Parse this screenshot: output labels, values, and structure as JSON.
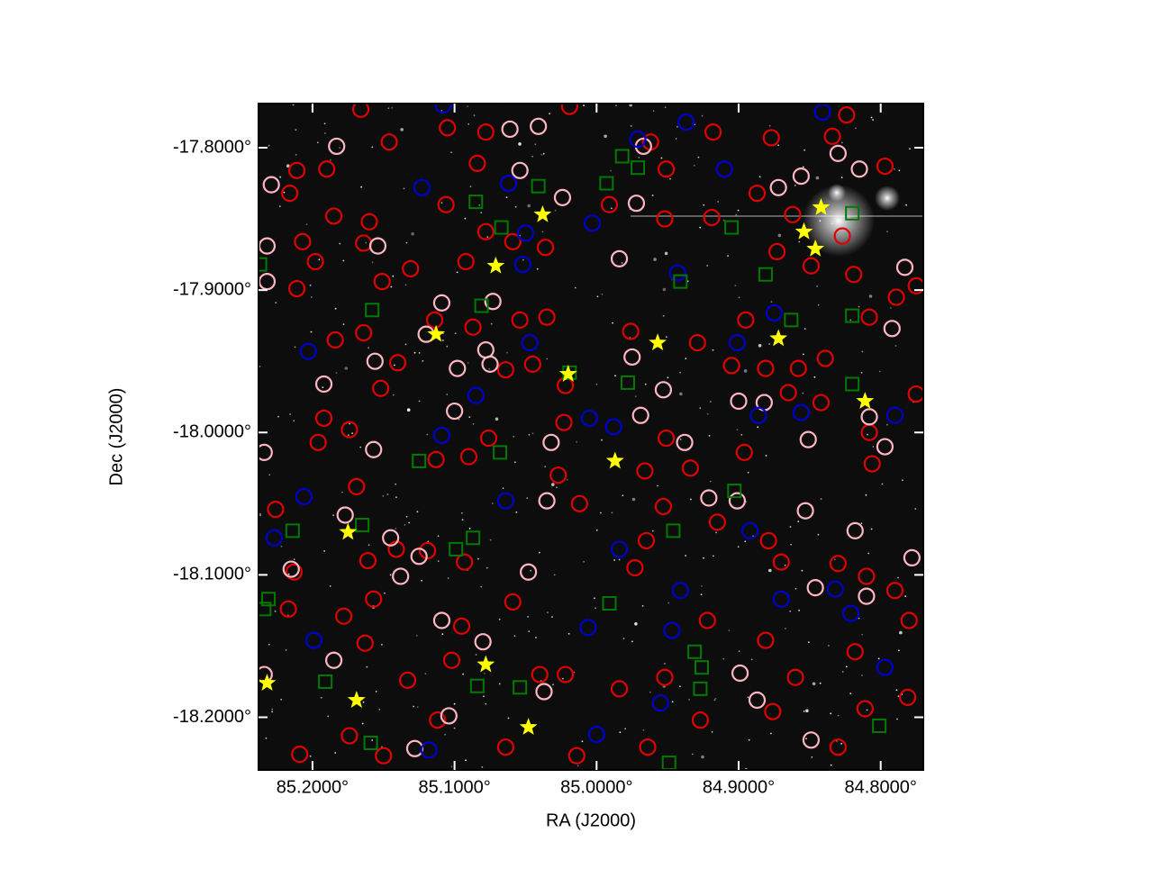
{
  "chart_data": {
    "type": "scatter",
    "xlabel": "RA (J2000)",
    "ylabel": "Dec (J2000)",
    "xlim": [
      85.238,
      84.77
    ],
    "ylim": [
      -18.237,
      -17.769
    ],
    "xticks": [
      {
        "value": 85.2,
        "label": "85.2000°"
      },
      {
        "value": 85.1,
        "label": "85.1000°"
      },
      {
        "value": 85.0,
        "label": "85.0000°"
      },
      {
        "value": 84.9,
        "label": "84.9000°"
      },
      {
        "value": 84.8,
        "label": "84.8000°"
      }
    ],
    "yticks": [
      {
        "value": -17.8,
        "label": "-17.8000°"
      },
      {
        "value": -17.9,
        "label": "-17.9000°"
      },
      {
        "value": -18.0,
        "label": "-18.0000°"
      },
      {
        "value": -18.1,
        "label": "-18.1000°"
      },
      {
        "value": -18.2,
        "label": "-18.2000°"
      }
    ],
    "background": "#0d0d0d",
    "series": [
      {
        "marker": "circle",
        "color": "#e00000",
        "x": [
          85.166,
          85.146,
          85.105,
          85.078,
          85.084,
          85.019,
          84.962,
          84.951,
          84.918,
          84.877,
          84.824,
          84.834,
          84.797,
          85.211,
          85.19,
          85.216,
          85.185,
          85.16,
          85.164,
          85.198,
          85.207,
          85.211,
          85.151,
          85.131,
          85.106,
          85.092,
          85.078,
          85.059,
          85.036,
          84.991,
          84.952,
          84.919,
          84.887,
          84.862,
          84.873,
          84.849,
          84.827,
          84.819,
          84.789,
          84.775,
          85.184,
          85.164,
          85.152,
          85.14,
          85.114,
          85.087,
          85.054,
          85.035,
          85.045,
          85.064,
          85.022,
          84.976,
          84.929,
          84.905,
          84.895,
          84.881,
          84.858,
          84.839,
          84.808,
          84.775,
          85.192,
          85.196,
          85.174,
          85.113,
          85.09,
          85.076,
          85.023,
          85.027,
          84.966,
          84.951,
          84.934,
          84.896,
          84.865,
          84.842,
          84.808,
          84.806,
          85.226,
          85.169,
          85.161,
          85.141,
          85.157,
          85.119,
          85.093,
          85.059,
          85.012,
          84.973,
          84.965,
          84.953,
          84.915,
          84.879,
          84.87,
          84.83,
          84.81,
          84.79,
          85.213,
          85.217,
          85.178,
          85.163,
          85.133,
          85.102,
          85.095,
          85.04,
          85.022,
          84.984,
          84.952,
          84.922,
          84.881,
          84.86,
          84.818,
          84.78,
          84.781,
          84.811,
          84.876,
          84.927,
          84.964,
          85.014,
          85.064,
          85.112,
          85.15,
          85.209,
          85.174,
          84.83
        ],
        "y": [
          -17.773,
          -17.796,
          -17.786,
          -17.789,
          -17.811,
          -17.771,
          -17.796,
          -17.815,
          -17.789,
          -17.793,
          -17.777,
          -17.792,
          -17.813,
          -17.816,
          -17.815,
          -17.832,
          -17.848,
          -17.852,
          -17.867,
          -17.88,
          -17.866,
          -17.899,
          -17.894,
          -17.885,
          -17.84,
          -17.88,
          -17.859,
          -17.866,
          -17.87,
          -17.84,
          -17.85,
          -17.849,
          -17.832,
          -17.847,
          -17.873,
          -17.883,
          -17.862,
          -17.889,
          -17.905,
          -17.897,
          -17.935,
          -17.93,
          -17.969,
          -17.951,
          -17.921,
          -17.926,
          -17.921,
          -17.919,
          -17.952,
          -17.956,
          -17.967,
          -17.929,
          -17.937,
          -17.953,
          -17.921,
          -17.955,
          -17.955,
          -17.948,
          -17.919,
          -17.973,
          -17.99,
          -18.007,
          -17.998,
          -18.019,
          -18.017,
          -18.004,
          -17.993,
          -18.03,
          -18.027,
          -18.004,
          -18.025,
          -18.014,
          -17.972,
          -17.979,
          -18.0,
          -18.022,
          -18.054,
          -18.038,
          -18.09,
          -18.082,
          -18.117,
          -18.083,
          -18.091,
          -18.119,
          -18.05,
          -18.095,
          -18.076,
          -18.052,
          -18.063,
          -18.076,
          -18.091,
          -18.092,
          -18.101,
          -18.111,
          -18.098,
          -18.124,
          -18.129,
          -18.148,
          -18.174,
          -18.16,
          -18.136,
          -18.17,
          -18.17,
          -18.18,
          -18.172,
          -18.132,
          -18.146,
          -18.172,
          -18.154,
          -18.132,
          -18.186,
          -18.194,
          -18.196,
          -18.202,
          -18.221,
          -18.227,
          -18.221,
          -18.202,
          -18.227,
          -18.226,
          -18.213,
          -18.221
        ]
      },
      {
        "marker": "circle",
        "color": "#ffb6c1",
        "x": [
          85.183,
          85.229,
          85.232,
          85.232,
          85.154,
          85.073,
          85.078,
          85.075,
          85.098,
          85.12,
          85.109,
          85.061,
          85.054,
          85.041,
          85.024,
          84.972,
          84.984,
          84.967,
          84.975,
          84.953,
          84.969,
          84.938,
          84.921,
          84.9,
          84.882,
          84.872,
          84.856,
          84.83,
          84.815,
          84.783,
          84.792,
          84.808,
          84.797,
          84.851,
          85.156,
          85.157,
          85.192,
          85.1,
          85.032,
          85.035,
          85.177,
          85.145,
          85.125,
          85.138,
          85.109,
          85.08,
          85.048,
          85.037,
          84.899,
          84.887,
          84.849,
          84.846,
          84.818,
          84.853,
          84.901,
          84.778,
          85.234,
          85.215,
          85.185,
          85.104,
          85.128,
          85.234,
          84.81
        ],
        "y": [
          -17.799,
          -17.826,
          -17.869,
          -17.894,
          -17.869,
          -17.908,
          -17.942,
          -17.952,
          -17.955,
          -17.931,
          -17.909,
          -17.787,
          -17.816,
          -17.785,
          -17.835,
          -17.839,
          -17.878,
          -17.799,
          -17.947,
          -17.97,
          -17.988,
          -18.007,
          -18.046,
          -17.978,
          -17.979,
          -17.828,
          -17.82,
          -17.804,
          -17.815,
          -17.884,
          -17.927,
          -17.989,
          -18.01,
          -18.005,
          -17.95,
          -18.012,
          -17.966,
          -17.985,
          -18.007,
          -18.048,
          -18.058,
          -18.074,
          -18.087,
          -18.101,
          -18.132,
          -18.147,
          -18.098,
          -18.182,
          -18.169,
          -18.188,
          -18.216,
          -18.109,
          -18.069,
          -18.055,
          -18.048,
          -18.088,
          -18.17,
          -18.096,
          -18.16,
          -18.199,
          -18.222,
          -18.014,
          -18.115
        ]
      },
      {
        "marker": "circle",
        "color": "#0000cc",
        "x": [
          85.123,
          85.05,
          85.052,
          85.003,
          84.937,
          84.91,
          84.841,
          84.875,
          84.901,
          84.943,
          85.047,
          85.085,
          85.109,
          85.005,
          84.988,
          85.064,
          85.206,
          85.227,
          85.203,
          84.984,
          84.941,
          85.006,
          84.947,
          84.87,
          84.832,
          84.821,
          84.797,
          84.955,
          85.0,
          85.118,
          84.856,
          84.79,
          84.886,
          84.892,
          85.199,
          84.971,
          85.062,
          85.108
        ],
        "y": [
          -17.828,
          -17.86,
          -17.882,
          -17.853,
          -17.782,
          -17.815,
          -17.775,
          -17.916,
          -17.937,
          -17.888,
          -17.937,
          -17.974,
          -18.002,
          -17.99,
          -17.996,
          -18.048,
          -18.045,
          -18.074,
          -17.943,
          -18.082,
          -18.111,
          -18.137,
          -18.139,
          -18.117,
          -18.11,
          -18.127,
          -18.165,
          -18.19,
          -18.212,
          -18.223,
          -17.986,
          -17.988,
          -17.988,
          -18.069,
          -18.146,
          -17.794,
          -17.825,
          -17.77
        ]
      },
      {
        "marker": "square",
        "color": "#007a00",
        "x": [
          85.085,
          85.067,
          85.041,
          84.982,
          84.971,
          84.993,
          84.905,
          84.881,
          84.941,
          84.863,
          84.82,
          85.158,
          85.081,
          84.978,
          84.82,
          85.019,
          85.125,
          85.068,
          85.165,
          85.214,
          85.099,
          85.087,
          84.946,
          84.903,
          84.991,
          85.231,
          85.234,
          85.237,
          85.191,
          85.084,
          85.054,
          84.931,
          84.926,
          84.927,
          85.159,
          84.949,
          84.801,
          84.82
        ],
        "y": [
          -17.838,
          -17.856,
          -17.827,
          -17.806,
          -17.814,
          -17.825,
          -17.856,
          -17.889,
          -17.894,
          -17.921,
          -17.918,
          -17.914,
          -17.911,
          -17.965,
          -17.966,
          -17.958,
          -18.02,
          -18.014,
          -18.065,
          -18.069,
          -18.082,
          -18.074,
          -18.069,
          -18.041,
          -18.12,
          -18.117,
          -18.124,
          -17.882,
          -18.175,
          -18.178,
          -18.179,
          -18.154,
          -18.165,
          -18.18,
          -18.218,
          -18.232,
          -18.206,
          -17.846
        ]
      },
      {
        "marker": "star",
        "color": "#ffff00",
        "x": [
          85.038,
          85.071,
          85.113,
          85.02,
          84.987,
          84.957,
          84.842,
          84.854,
          84.846,
          84.872,
          84.811,
          85.175,
          85.078,
          85.232,
          85.169,
          85.048
        ],
        "y": [
          -17.847,
          -17.883,
          -17.931,
          -17.959,
          -18.02,
          -17.937,
          -17.842,
          -17.859,
          -17.871,
          -17.934,
          -17.978,
          -18.07,
          -18.163,
          -18.176,
          -18.188,
          -18.207
        ]
      }
    ]
  }
}
